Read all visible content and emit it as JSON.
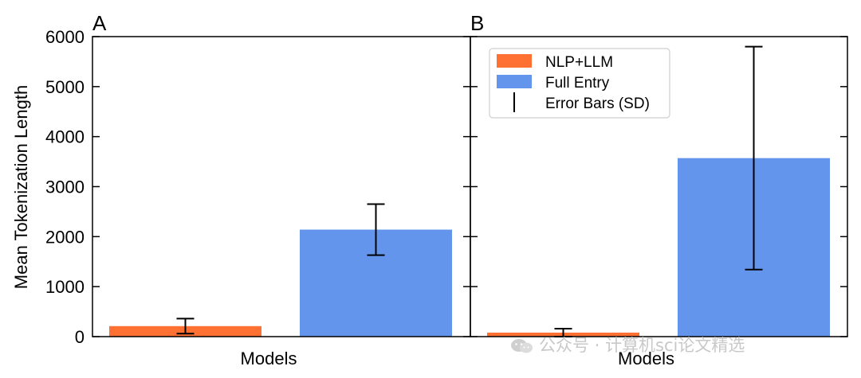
{
  "chart_data": {
    "type": "bar",
    "ylabel": "Mean Tokenization Length",
    "ylim": [
      0,
      6000
    ],
    "yticks": [
      0,
      1000,
      2000,
      3000,
      4000,
      5000,
      6000
    ],
    "shared_y": true,
    "legend": {
      "position": "upper-left of panel B",
      "entries": [
        {
          "label": "NLP+LLM",
          "kind": "patch",
          "color": "#ff7033"
        },
        {
          "label": "Full Entry",
          "kind": "patch",
          "color": "#6495ed"
        },
        {
          "label": "Error Bars (SD)",
          "kind": "line",
          "color": "#000000"
        }
      ]
    },
    "panels": [
      {
        "panel_label": "A",
        "xlabel": "Models",
        "series": [
          {
            "name": "NLP+LLM",
            "color": "#ff7033",
            "value": 210,
            "sd": 150
          },
          {
            "name": "Full Entry",
            "color": "#6495ed",
            "value": 2140,
            "sd": 510
          }
        ]
      },
      {
        "panel_label": "B",
        "xlabel": "Models",
        "series": [
          {
            "name": "NLP+LLM",
            "color": "#ff7033",
            "value": 80,
            "sd": 80
          },
          {
            "name": "Full Entry",
            "color": "#6495ed",
            "value": 3570,
            "sd": 2230
          }
        ]
      }
    ]
  },
  "watermark": {
    "text": "公众号 · 计算机sci论文精选",
    "icon": "wechat-icon"
  }
}
